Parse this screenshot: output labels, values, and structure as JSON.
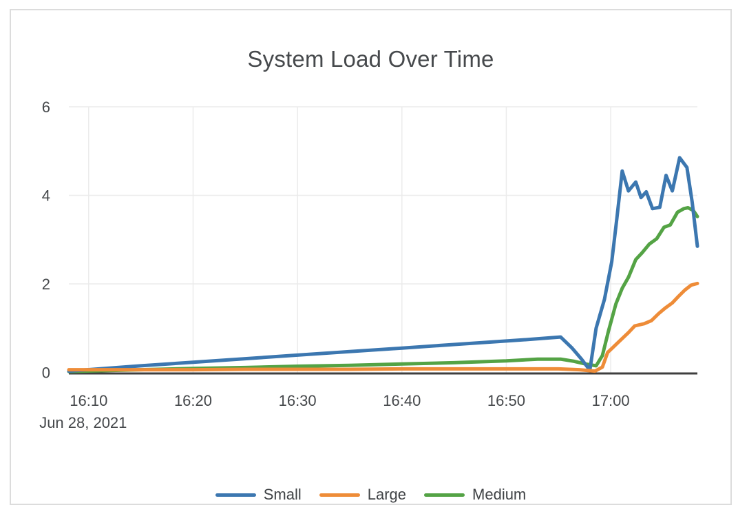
{
  "chart_data": {
    "type": "line",
    "title": "System Load Over Time",
    "grid": true,
    "legend_position": "bottom",
    "x_axis": {
      "date_label": "Jun 28, 2021",
      "domain": [
        8.1,
        68.3
      ],
      "ticks": [
        {
          "minute": 10,
          "label": "16:10"
        },
        {
          "minute": 20,
          "label": "16:20"
        },
        {
          "minute": 30,
          "label": "16:30"
        },
        {
          "minute": 40,
          "label": "16:40"
        },
        {
          "minute": 50,
          "label": "16:50"
        },
        {
          "minute": 60,
          "label": "17:00"
        }
      ]
    },
    "y_axis": {
      "domain": [
        0,
        6
      ],
      "ticks": [
        0,
        2,
        4,
        6
      ]
    },
    "series": [
      {
        "name": "Small",
        "color": "#3c77b0",
        "points": [
          [
            8.1,
            0.03
          ],
          [
            15,
            0.15
          ],
          [
            20,
            0.23
          ],
          [
            25,
            0.31
          ],
          [
            30,
            0.39
          ],
          [
            35,
            0.47
          ],
          [
            40,
            0.55
          ],
          [
            45,
            0.63
          ],
          [
            50,
            0.71
          ],
          [
            52.5,
            0.75
          ],
          [
            55.2,
            0.8
          ],
          [
            56.3,
            0.55
          ],
          [
            57.2,
            0.3
          ],
          [
            58.0,
            0.05
          ],
          [
            58.6,
            1.0
          ],
          [
            59.4,
            1.65
          ],
          [
            60.1,
            2.5
          ],
          [
            60.6,
            3.5
          ],
          [
            61.1,
            4.55
          ],
          [
            61.7,
            4.1
          ],
          [
            62.4,
            4.3
          ],
          [
            62.9,
            3.95
          ],
          [
            63.4,
            4.08
          ],
          [
            64.0,
            3.7
          ],
          [
            64.7,
            3.73
          ],
          [
            65.3,
            4.45
          ],
          [
            65.9,
            4.1
          ],
          [
            66.6,
            4.85
          ],
          [
            67.3,
            4.63
          ],
          [
            67.8,
            3.85
          ],
          [
            68.3,
            2.85
          ]
        ]
      },
      {
        "name": "Large",
        "color": "#ee8c38",
        "points": [
          [
            8.1,
            0.06
          ],
          [
            15,
            0.06
          ],
          [
            20,
            0.06
          ],
          [
            25,
            0.07
          ],
          [
            30,
            0.07
          ],
          [
            35,
            0.07
          ],
          [
            40,
            0.08
          ],
          [
            45,
            0.08
          ],
          [
            50,
            0.08
          ],
          [
            55,
            0.08
          ],
          [
            57,
            0.06
          ],
          [
            58.5,
            0.03
          ],
          [
            59.2,
            0.12
          ],
          [
            59.7,
            0.45
          ],
          [
            60.9,
            0.72
          ],
          [
            61.7,
            0.9
          ],
          [
            62.3,
            1.05
          ],
          [
            63.2,
            1.1
          ],
          [
            63.9,
            1.17
          ],
          [
            64.6,
            1.33
          ],
          [
            65.2,
            1.45
          ],
          [
            65.9,
            1.57
          ],
          [
            66.5,
            1.72
          ],
          [
            67.1,
            1.86
          ],
          [
            67.7,
            1.97
          ],
          [
            68.3,
            2.01
          ]
        ]
      },
      {
        "name": "Medium",
        "color": "#54a345",
        "points": [
          [
            8.1,
            0.02
          ],
          [
            15,
            0.06
          ],
          [
            20,
            0.09
          ],
          [
            25,
            0.11
          ],
          [
            30,
            0.14
          ],
          [
            35,
            0.16
          ],
          [
            40,
            0.19
          ],
          [
            45,
            0.22
          ],
          [
            50,
            0.26
          ],
          [
            53,
            0.3
          ],
          [
            55.2,
            0.3
          ],
          [
            56.5,
            0.25
          ],
          [
            57.6,
            0.19
          ],
          [
            58.6,
            0.15
          ],
          [
            59.2,
            0.38
          ],
          [
            59.8,
            0.95
          ],
          [
            60.5,
            1.55
          ],
          [
            61.1,
            1.9
          ],
          [
            61.7,
            2.15
          ],
          [
            62.4,
            2.55
          ],
          [
            63.0,
            2.7
          ],
          [
            63.7,
            2.9
          ],
          [
            64.4,
            3.02
          ],
          [
            65.1,
            3.28
          ],
          [
            65.7,
            3.33
          ],
          [
            66.4,
            3.62
          ],
          [
            67.0,
            3.7
          ],
          [
            67.4,
            3.72
          ],
          [
            67.9,
            3.66
          ],
          [
            68.3,
            3.52
          ]
        ]
      }
    ],
    "colors": {
      "gridline": "#ebebeb",
      "axis_line": "#3f3f3f",
      "text": "#45484b",
      "card_border": "#dcdcdc"
    }
  }
}
